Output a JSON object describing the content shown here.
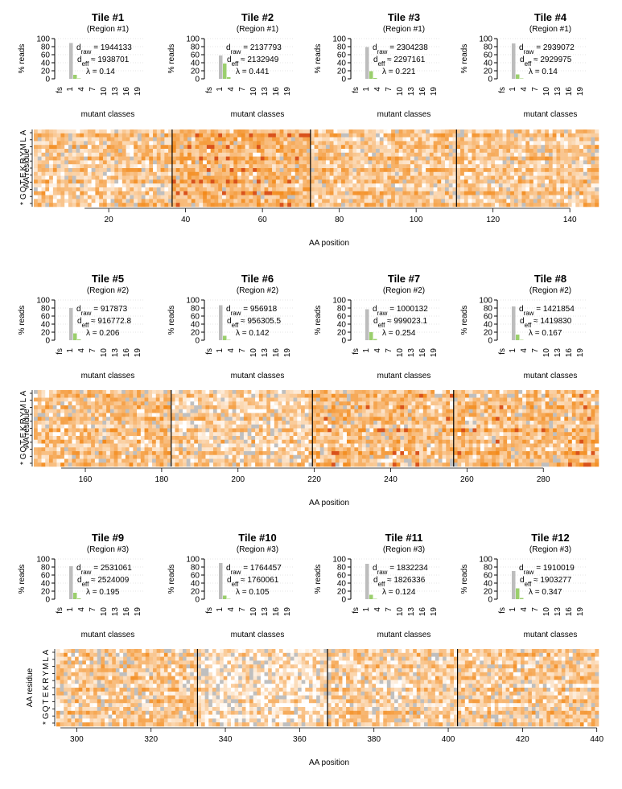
{
  "colors": {
    "gray_bar": "#bdbdbd",
    "green_bar": "#9bcf6d",
    "heat_low": "#ffffff",
    "heat_high": "#f2840f",
    "heat_max": "#d9521c",
    "missing": "#bfbfbf",
    "grid": "#dddddd"
  },
  "labels": {
    "ylabel_bars": "% reads",
    "xlabel_bars": "mutant classes",
    "ylabel_heat": "AA residue",
    "xlabel_heat": "AA position",
    "d_raw": "d",
    "d_raw_sub": "raw",
    "d_eff": "d",
    "d_eff_sub": "eff",
    "lambda": "λ"
  },
  "chart_data": [
    {
      "type": "bar",
      "title": "Tile #1",
      "subtitle": "(Region #1)",
      "ylabel": "% reads",
      "xlabel": "mutant classes",
      "categories": [
        "fs",
        "1",
        "4",
        "7",
        "10",
        "13",
        "16",
        "19"
      ],
      "ylim": [
        0,
        100
      ],
      "yticks": [
        0,
        20,
        40,
        60,
        80,
        100
      ],
      "values": {
        "wt": 89,
        "single": 10,
        "double": 1
      },
      "stats": {
        "d_raw": "1944133",
        "d_eff": "1938701",
        "lambda": "0.14"
      }
    },
    {
      "type": "bar",
      "title": "Tile #2",
      "subtitle": "(Region #1)",
      "ylabel": "% reads",
      "xlabel": "mutant classes",
      "categories": [
        "fs",
        "1",
        "4",
        "7",
        "10",
        "13",
        "16",
        "19"
      ],
      "ylim": [
        0,
        100
      ],
      "yticks": [
        0,
        20,
        40,
        60,
        80,
        100
      ],
      "values": {
        "wt": 58,
        "single": 38,
        "double": 4
      },
      "stats": {
        "d_raw": "2137793",
        "d_eff": "2132949",
        "lambda": "0.441"
      }
    },
    {
      "type": "bar",
      "title": "Tile #3",
      "subtitle": "(Region #1)",
      "ylabel": "% reads",
      "xlabel": "mutant classes",
      "categories": [
        "fs",
        "1",
        "4",
        "7",
        "10",
        "13",
        "16",
        "19"
      ],
      "ylim": [
        0,
        100
      ],
      "yticks": [
        0,
        20,
        40,
        60,
        80,
        100
      ],
      "values": {
        "wt": 79,
        "single": 19,
        "double": 2
      },
      "stats": {
        "d_raw": "2304238",
        "d_eff": "2297161",
        "lambda": "0.221"
      }
    },
    {
      "type": "bar",
      "title": "Tile #4",
      "subtitle": "(Region #1)",
      "ylabel": "% reads",
      "xlabel": "mutant classes",
      "categories": [
        "fs",
        "1",
        "4",
        "7",
        "10",
        "13",
        "16",
        "19"
      ],
      "ylim": [
        0,
        100
      ],
      "yticks": [
        0,
        20,
        40,
        60,
        80,
        100
      ],
      "values": {
        "wt": 88,
        "single": 11,
        "double": 1
      },
      "stats": {
        "d_raw": "2939072",
        "d_eff": "2929975",
        "lambda": "0.14"
      }
    },
    {
      "type": "bar",
      "title": "Tile #5",
      "subtitle": "(Region #2)",
      "ylabel": "% reads",
      "xlabel": "mutant classes",
      "categories": [
        "fs",
        "1",
        "4",
        "7",
        "10",
        "13",
        "16",
        "19"
      ],
      "ylim": [
        0,
        100
      ],
      "yticks": [
        0,
        20,
        40,
        60,
        80,
        100
      ],
      "values": {
        "wt": 80,
        "single": 17,
        "double": 2
      },
      "stats": {
        "d_raw": "917873",
        "d_eff": "916772.8",
        "lambda": "0.206"
      }
    },
    {
      "type": "bar",
      "title": "Tile #6",
      "subtitle": "(Region #2)",
      "ylabel": "% reads",
      "xlabel": "mutant classes",
      "categories": [
        "fs",
        "1",
        "4",
        "7",
        "10",
        "13",
        "16",
        "19"
      ],
      "ylim": [
        0,
        100
      ],
      "yticks": [
        0,
        20,
        40,
        60,
        80,
        100
      ],
      "values": {
        "wt": 87,
        "single": 11,
        "double": 1
      },
      "stats": {
        "d_raw": "956918",
        "d_eff": "956305.5",
        "lambda": "0.142"
      }
    },
    {
      "type": "bar",
      "title": "Tile #7",
      "subtitle": "(Region #2)",
      "ylabel": "% reads",
      "xlabel": "mutant classes",
      "categories": [
        "fs",
        "1",
        "4",
        "7",
        "10",
        "13",
        "16",
        "19"
      ],
      "ylim": [
        0,
        100
      ],
      "yticks": [
        0,
        20,
        40,
        60,
        80,
        100
      ],
      "values": {
        "wt": 77,
        "single": 20,
        "double": 3
      },
      "stats": {
        "d_raw": "1000132",
        "d_eff": "999023.1",
        "lambda": "0.254"
      }
    },
    {
      "type": "bar",
      "title": "Tile #8",
      "subtitle": "(Region #2)",
      "ylabel": "% reads",
      "xlabel": "mutant classes",
      "categories": [
        "fs",
        "1",
        "4",
        "7",
        "10",
        "13",
        "16",
        "19"
      ],
      "ylim": [
        0,
        100
      ],
      "yticks": [
        0,
        20,
        40,
        60,
        80,
        100
      ],
      "values": {
        "wt": 84,
        "single": 14,
        "double": 1
      },
      "stats": {
        "d_raw": "1421854",
        "d_eff": "1419830",
        "lambda": "0.167"
      }
    },
    {
      "type": "bar",
      "title": "Tile #9",
      "subtitle": "(Region #3)",
      "ylabel": "% reads",
      "xlabel": "mutant classes",
      "categories": [
        "fs",
        "1",
        "4",
        "7",
        "10",
        "13",
        "16",
        "19"
      ],
      "ylim": [
        0,
        100
      ],
      "yticks": [
        0,
        20,
        40,
        60,
        80,
        100
      ],
      "values": {
        "wt": 82,
        "single": 16,
        "double": 2
      },
      "stats": {
        "d_raw": "2531061",
        "d_eff": "2524009",
        "lambda": "0.195"
      }
    },
    {
      "type": "bar",
      "title": "Tile #10",
      "subtitle": "(Region #3)",
      "ylabel": "% reads",
      "xlabel": "mutant classes",
      "categories": [
        "fs",
        "1",
        "4",
        "7",
        "10",
        "13",
        "16",
        "19"
      ],
      "ylim": [
        0,
        100
      ],
      "yticks": [
        0,
        20,
        40,
        60,
        80,
        100
      ],
      "values": {
        "wt": 90,
        "single": 9,
        "double": 1
      },
      "stats": {
        "d_raw": "1764457",
        "d_eff": "1760061",
        "lambda": "0.105"
      }
    },
    {
      "type": "bar",
      "title": "Tile #11",
      "subtitle": "(Region #3)",
      "ylabel": "% reads",
      "xlabel": "mutant classes",
      "categories": [
        "fs",
        "1",
        "4",
        "7",
        "10",
        "13",
        "16",
        "19"
      ],
      "ylim": [
        0,
        100
      ],
      "yticks": [
        0,
        20,
        40,
        60,
        80,
        100
      ],
      "values": {
        "wt": 88,
        "single": 11,
        "double": 1
      },
      "stats": {
        "d_raw": "1832234",
        "d_eff": "1826336",
        "lambda": "0.124"
      }
    },
    {
      "type": "bar",
      "title": "Tile #12",
      "subtitle": "(Region #3)",
      "ylabel": "% reads",
      "xlabel": "mutant classes",
      "categories": [
        "fs",
        "1",
        "4",
        "7",
        "10",
        "13",
        "16",
        "19"
      ],
      "ylim": [
        0,
        100
      ],
      "yticks": [
        0,
        20,
        40,
        60,
        80,
        100
      ],
      "values": {
        "wt": 70,
        "single": 27,
        "double": 3
      },
      "stats": {
        "d_raw": "1910019",
        "d_eff": "1903277",
        "lambda": "0.347"
      }
    },
    {
      "type": "heatmap",
      "ylabel": "AA residue",
      "xlabel": "AA position",
      "xlim": [
        1,
        147
      ],
      "xticks": [
        20,
        40,
        60,
        80,
        100,
        120,
        140
      ],
      "rows": [
        "A",
        "L",
        "M",
        "Y",
        "R",
        "K",
        "E",
        "T",
        "Q",
        "G",
        "*"
      ],
      "tile_boundaries": [
        36.5,
        72.5,
        110.5
      ],
      "tile_variability": [
        0.18,
        0.12,
        0.15,
        0.18
      ],
      "tile_intensity": [
        0.45,
        0.6,
        0.45,
        0.45
      ],
      "seed": 11
    },
    {
      "type": "heatmap",
      "ylabel": "AA residue",
      "xlabel": "AA position",
      "xlim": [
        147,
        294
      ],
      "xticks": [
        160,
        180,
        200,
        220,
        240,
        260,
        280
      ],
      "rows": [
        "A",
        "L",
        "M",
        "Y",
        "R",
        "K",
        "E",
        "T",
        "Q",
        "G",
        "*"
      ],
      "tile_boundaries": [
        182.5,
        219.5,
        256.5
      ],
      "tile_variability": [
        0.18,
        0.28,
        0.18,
        0.15
      ],
      "tile_intensity": [
        0.5,
        0.4,
        0.55,
        0.55
      ],
      "seed": 27
    },
    {
      "type": "heatmap",
      "ylabel": "AA residue",
      "xlabel": "AA position",
      "xlim": [
        295,
        440
      ],
      "xticks": [
        300,
        320,
        340,
        360,
        380,
        400,
        420,
        440
      ],
      "rows": [
        "A",
        "L",
        "M",
        "Y",
        "R",
        "K",
        "E",
        "T",
        "Q",
        "G",
        "*"
      ],
      "tile_boundaries": [
        332.5,
        367.5,
        402.5
      ],
      "tile_variability": [
        0.22,
        0.38,
        0.28,
        0.22
      ],
      "tile_intensity": [
        0.45,
        0.3,
        0.4,
        0.45
      ],
      "seed": 53
    }
  ]
}
